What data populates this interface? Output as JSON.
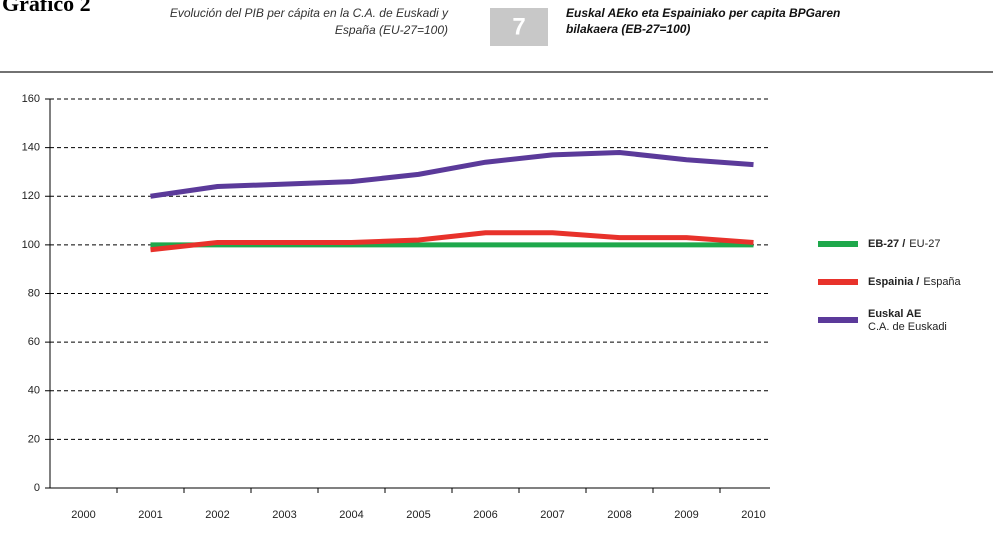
{
  "chart_data": {
    "type": "line",
    "title": "Gráfico 2",
    "subtitle": [
      "Evolución del PIB per cápita en la C.A. de Euskadi y",
      "España (EU-27=100)"
    ],
    "number": "7",
    "subtitle_eu": [
      "Euskal AEko eta Espainiako per capita BPGaren",
      "bilakaera (EB-27=100)"
    ],
    "categories": [
      "2000",
      "2001",
      "2002",
      "2003",
      "2004",
      "2005",
      "2006",
      "2007",
      "2008",
      "2009",
      "2010"
    ],
    "series": [
      {
        "name": "EB-27 /",
        "name_sub": "EU-27",
        "color": "#1ea84b",
        "values": [
          null,
          100,
          100,
          100,
          100,
          100,
          100,
          100,
          100,
          100,
          100
        ]
      },
      {
        "name": "Espainia /",
        "name_sub": "España",
        "color": "#e8322b",
        "values": [
          null,
          98,
          101,
          101,
          101,
          102,
          105,
          105,
          103,
          103,
          101
        ]
      },
      {
        "name": "Euskal AE",
        "name_sub": "C.A. de Euskadi",
        "color": "#5b3a9a",
        "values": [
          null,
          120,
          124,
          125,
          126,
          129,
          134,
          137,
          138,
          135,
          133
        ]
      }
    ],
    "ylim": [
      0,
      160
    ],
    "yticks": [
      0,
      20,
      40,
      60,
      80,
      100,
      120,
      140,
      160
    ],
    "grid": true
  }
}
